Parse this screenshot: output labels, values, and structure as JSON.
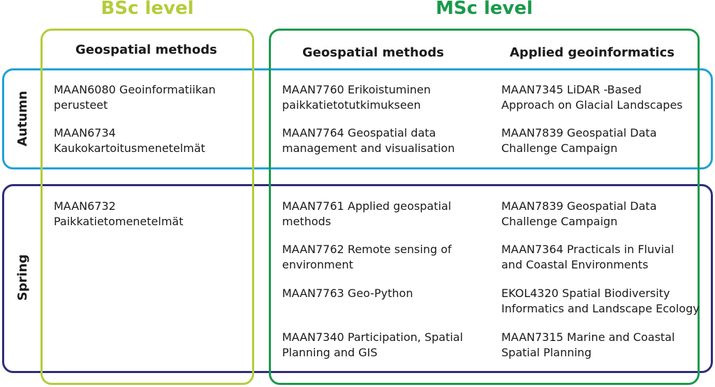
{
  "levels": {
    "bsc": "BSc level",
    "msc": "MSc level"
  },
  "columns": {
    "bsc_geospatial": "Geospatial methods",
    "msc_geospatial": "Geospatial methods",
    "msc_applied": "Applied geoinformatics"
  },
  "seasons": {
    "autumn": "Autumn",
    "spring": "Spring"
  },
  "courses": {
    "autumn": {
      "bsc_geospatial": [
        "MAAN6080 Geoinformatiikan\nperusteet",
        "MAAN6734\nKaukokartoitusmenetelmät"
      ],
      "msc_geospatial": [
        "MAAN7760 Erikoistuminen\npaikkatietotutkimukseen",
        "MAAN7764 Geospatial data\nmanagement and visualisation"
      ],
      "msc_applied": [
        "MAAN7345 LiDAR -Based\nApproach on Glacial Landscapes",
        "MAAN7839 Geospatial Data\nChallenge Campaign"
      ]
    },
    "spring": {
      "bsc_geospatial": [
        "MAAN6732\nPaikkatietomenetelmät"
      ],
      "msc_geospatial": [
        "MAAN7761 Applied geospatial\nmethods",
        "MAAN7762 Remote sensing of\nenvironment",
        "MAAN7763 Geo-Python",
        "MAAN7340 Participation, Spatial\nPlanning and GIS"
      ],
      "msc_applied": [
        "MAAN7839 Geospatial Data\nChallenge Campaign",
        "MAAN7364 Practicals in Fluvial\nand Coastal Environments",
        "EKOL4320 Spatial Biodiversity\nInformatics and Landscape Ecology",
        "MAAN7315 Marine and Coastal\nSpatial Planning"
      ]
    }
  },
  "colors": {
    "bsc": "#b5cc3a",
    "msc": "#1a9a4a",
    "autumn": "#1ea2d5",
    "spring": "#2f2c7d"
  }
}
